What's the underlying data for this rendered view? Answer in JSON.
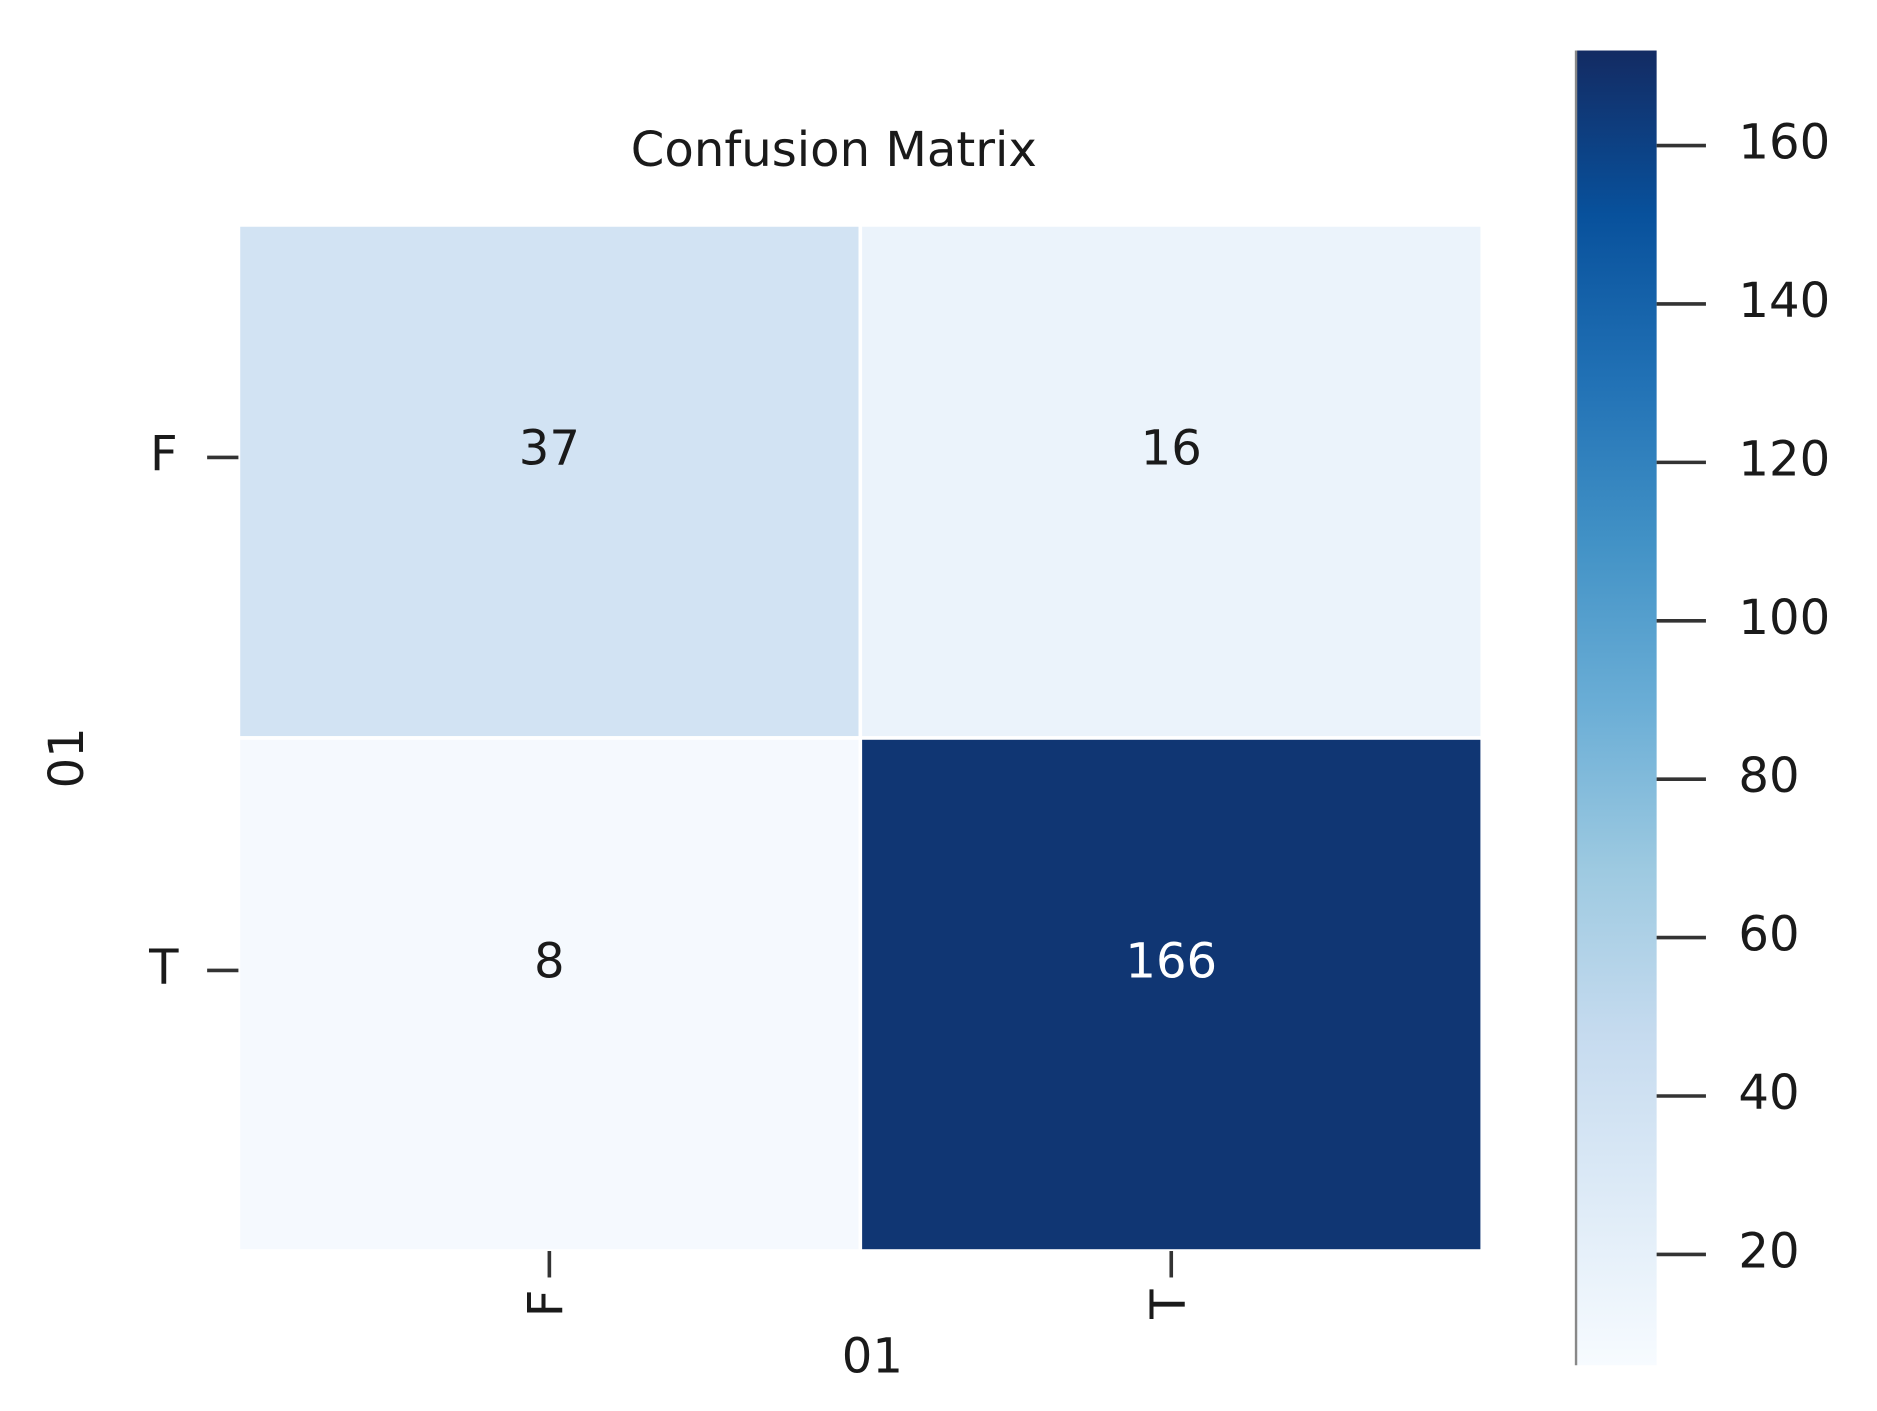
{
  "chart_data": {
    "type": "heatmap",
    "title": "Confusion Matrix",
    "x_label": "01",
    "y_label": "01",
    "x_categories": [
      "F",
      "T"
    ],
    "y_categories": [
      "F",
      "T"
    ],
    "values": [
      [
        37,
        16
      ],
      [
        8,
        166
      ]
    ],
    "colormap": "Blues",
    "colorbar_lim": [
      6,
      172
    ],
    "colorbar_ticks": [
      20,
      40,
      60,
      80,
      100,
      120,
      140,
      160
    ]
  }
}
